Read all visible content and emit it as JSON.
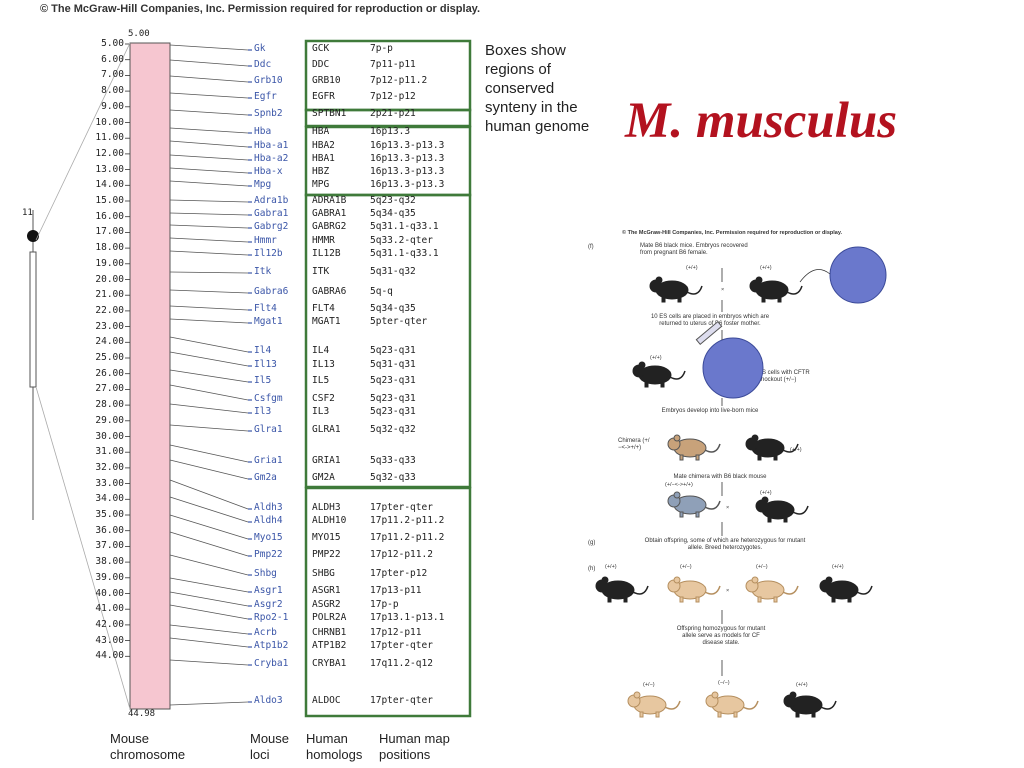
{
  "copyright": "© The McGraw-Hill Companies, Inc.  Permission required for reproduction or display.",
  "chromosome": {
    "number": "11",
    "top_value": "5.00",
    "bottom_value": "44.98",
    "scale_labels": [
      "5.00",
      "6.00",
      "7.00",
      "8.00",
      "9.00",
      "10.00",
      "11.00",
      "12.00",
      "13.00",
      "14.00",
      "15.00",
      "16.00",
      "17.00",
      "18.00",
      "19.00",
      "20.00",
      "21.00",
      "22.00",
      "23.00",
      "24.00",
      "25.00",
      "26.00",
      "27.00",
      "28.00",
      "29.00",
      "30.00",
      "31.00",
      "32.00",
      "33.00",
      "34.00",
      "35.00",
      "36.00",
      "37.00",
      "38.00",
      "39.00",
      "40.00",
      "41.00",
      "42.00",
      "43.00",
      "44.00"
    ]
  },
  "loci": [
    {
      "mouse": "Gk",
      "human": "GCK",
      "pos": "7p-p"
    },
    {
      "mouse": "Ddc",
      "human": "DDC",
      "pos": "7p11-p11"
    },
    {
      "mouse": "Grb10",
      "human": "GRB10",
      "pos": "7p12-p11.2"
    },
    {
      "mouse": "Egfr",
      "human": "EGFR",
      "pos": "7p12-p12"
    },
    {
      "mouse": "Spnb2",
      "human": "SPTBN1",
      "pos": "2p21-p21"
    },
    {
      "mouse": "Hba",
      "human": "HBA",
      "pos": "16p13.3"
    },
    {
      "mouse": "Hba-a1",
      "human": "HBA2",
      "pos": "16p13.3-p13.3"
    },
    {
      "mouse": "Hba-a2",
      "human": "HBA1",
      "pos": "16p13.3-p13.3"
    },
    {
      "mouse": "Hba-x",
      "human": "HBZ",
      "pos": "16p13.3-p13.3"
    },
    {
      "mouse": "Mpg",
      "human": "MPG",
      "pos": "16p13.3-p13.3"
    },
    {
      "mouse": "Adra1b",
      "human": "ADRA1B",
      "pos": "5q23-q32"
    },
    {
      "mouse": "Gabra1",
      "human": "GABRA1",
      "pos": "5q34-q35"
    },
    {
      "mouse": "Gabrg2",
      "human": "GABRG2",
      "pos": "5q31.1-q33.1"
    },
    {
      "mouse": "Hmmr",
      "human": "HMMR",
      "pos": "5q33.2-qter"
    },
    {
      "mouse": "Il12b",
      "human": "IL12B",
      "pos": "5q31.1-q33.1"
    },
    {
      "mouse": "Itk",
      "human": "ITK",
      "pos": "5q31-q32"
    },
    {
      "mouse": "Gabra6",
      "human": "GABRA6",
      "pos": "5q-q"
    },
    {
      "mouse": "Flt4",
      "human": "FLT4",
      "pos": "5q34-q35"
    },
    {
      "mouse": "Mgat1",
      "human": "MGAT1",
      "pos": "5pter-qter"
    },
    {
      "mouse": "Il4",
      "human": "IL4",
      "pos": "5q23-q31"
    },
    {
      "mouse": "Il13",
      "human": "IL13",
      "pos": "5q31-q31"
    },
    {
      "mouse": "Il5",
      "human": "IL5",
      "pos": "5q23-q31"
    },
    {
      "mouse": "Csfgm",
      "human": "CSF2",
      "pos": "5q23-q31"
    },
    {
      "mouse": "Il3",
      "human": "IL3",
      "pos": "5q23-q31"
    },
    {
      "mouse": "Glra1",
      "human": "GLRA1",
      "pos": "5q32-q32"
    },
    {
      "mouse": "Gria1",
      "human": "GRIA1",
      "pos": "5q33-q33"
    },
    {
      "mouse": "Gm2a",
      "human": "GM2A",
      "pos": "5q32-q33"
    },
    {
      "mouse": "Aldh3",
      "human": "ALDH3",
      "pos": "17pter-qter"
    },
    {
      "mouse": "Aldh4",
      "human": "ALDH10",
      "pos": "17p11.2-p11.2"
    },
    {
      "mouse": "Myo15",
      "human": "MYO15",
      "pos": "17p11.2-p11.2"
    },
    {
      "mouse": "Pmp22",
      "human": "PMP22",
      "pos": "17p12-p11.2"
    },
    {
      "mouse": "Shbg",
      "human": "SHBG",
      "pos": "17pter-p12"
    },
    {
      "mouse": "Asgr1",
      "human": "ASGR1",
      "pos": "17p13-p11"
    },
    {
      "mouse": "Asgr2",
      "human": "ASGR2",
      "pos": "17p-p"
    },
    {
      "mouse": "Rpo2-1",
      "human": "POLR2A",
      "pos": "17p13.1-p13.1"
    },
    {
      "mouse": "Acrb",
      "human": "CHRNB1",
      "pos": "17p12-p11"
    },
    {
      "mouse": "Atp1b2",
      "human": "ATP1B2",
      "pos": "17pter-qter"
    },
    {
      "mouse": "Cryba1",
      "human": "CRYBA1",
      "pos": "17q11.2-q12"
    },
    {
      "mouse": "Aldo3",
      "human": "ALDOC",
      "pos": "17pter-qter"
    }
  ],
  "caption": "Boxes show regions of conserved synteny in the human genome",
  "column_labels": {
    "mouse_chromosome": "Mouse chromosome",
    "mouse_loci": "Mouse loci",
    "human_homologs": "Human homologs",
    "human_map_positions": "Human map positions"
  },
  "species": "M. musculus",
  "panel": {
    "copyright": "© The McGraw-Hill Companies, Inc.  Permission required for reproduction or display.",
    "letter_f": "(f)",
    "letter_g": "(g)",
    "letter_h": "(h)",
    "step1": "Mate B6 black mice. Embryos recovered from pregnant B6 female.",
    "step2": "10 ES cells are placed in embryos which are returned to uterus of B6 foster mother.",
    "es_note": "ES cells with CFTR knockout (+/−)",
    "step3": "Embryos develop into live-born mice",
    "chimera": "Chimera (+/−<->+/+)",
    "step4": "Mate chimera with B6 black mouse",
    "step5": "Obtain offspring, some of which are heterozygous for mutant allele. Breed heterozygotes.",
    "step6": "Offspring homozygous for mutant allele serve as models for CF disease state.",
    "genotype_wt": "(+/+)",
    "genotype_het": "(+/−)",
    "genotype_hom": "(−/−)",
    "genotype_chimera": "(+/−<->+/+)",
    "cross": "×"
  },
  "colors": {
    "chromosome_fill": "#f6c6d0",
    "box_green": "#3f7a3a",
    "species_red": "#b3121f",
    "locus_blue": "#3b56a8",
    "black_mouse": "#222222",
    "tan_mouse": "#e7c7a0",
    "embryo_blue": "#6a78cc"
  }
}
